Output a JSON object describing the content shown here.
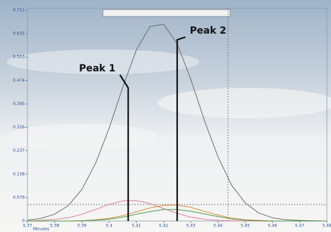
{
  "chart_data": {
    "type": "line",
    "x_label": "Minutes",
    "x": [
      5.37,
      5.375,
      5.38,
      5.385,
      5.39,
      5.395,
      5.4,
      5.405,
      5.41,
      5.415,
      5.42,
      5.425,
      5.43,
      5.435,
      5.44,
      5.445,
      5.45,
      5.455,
      5.46,
      5.465,
      5.47,
      5.475,
      5.48
    ],
    "series": [
      {
        "color": "#6b6b6b",
        "values": [
          0.003,
          0.009,
          0.023,
          0.052,
          0.107,
          0.194,
          0.313,
          0.451,
          0.577,
          0.656,
          0.664,
          0.598,
          0.478,
          0.34,
          0.216,
          0.121,
          0.061,
          0.027,
          0.011,
          0.004,
          0.002,
          0.001,
          0
        ]
      },
      {
        "color": "#e07a9a",
        "values": [
          0,
          0.002,
          0.005,
          0.011,
          0.023,
          0.039,
          0.056,
          0.068,
          0.069,
          0.059,
          0.042,
          0.026,
          0.013,
          0.006,
          0.002,
          0.001,
          0,
          0,
          0,
          0,
          0,
          0,
          0
        ]
      },
      {
        "color": "#d88a30",
        "values": [
          0,
          0,
          0,
          0,
          0.001,
          0.004,
          0.009,
          0.018,
          0.031,
          0.044,
          0.053,
          0.054,
          0.046,
          0.033,
          0.02,
          0.01,
          0.004,
          0.002,
          0,
          0,
          0,
          0,
          0
        ]
      },
      {
        "color": "#4a9a4a",
        "values": [
          0,
          0,
          0,
          0,
          0.001,
          0.003,
          0.006,
          0.013,
          0.023,
          0.032,
          0.039,
          0.039,
          0.033,
          0.024,
          0.015,
          0.007,
          0.003,
          0.001,
          0,
          0,
          0,
          0,
          0
        ]
      }
    ],
    "xlim": [
      5.37,
      5.48
    ],
    "xticks": [
      5.37,
      5.38,
      5.39,
      5.4,
      5.41,
      5.42,
      5.43,
      5.44,
      5.45,
      5.46,
      5.47,
      5.48
    ],
    "ylim": [
      0,
      0.711
    ],
    "yticks": [
      0,
      0.079,
      0.158,
      0.237,
      0.316,
      0.395,
      0.474,
      0.553,
      0.632,
      0.711
    ],
    "annotations": [
      {
        "text": "Peak 1",
        "x": 5.407
      },
      {
        "text": "Peak 2",
        "x": 5.425
      }
    ]
  }
}
